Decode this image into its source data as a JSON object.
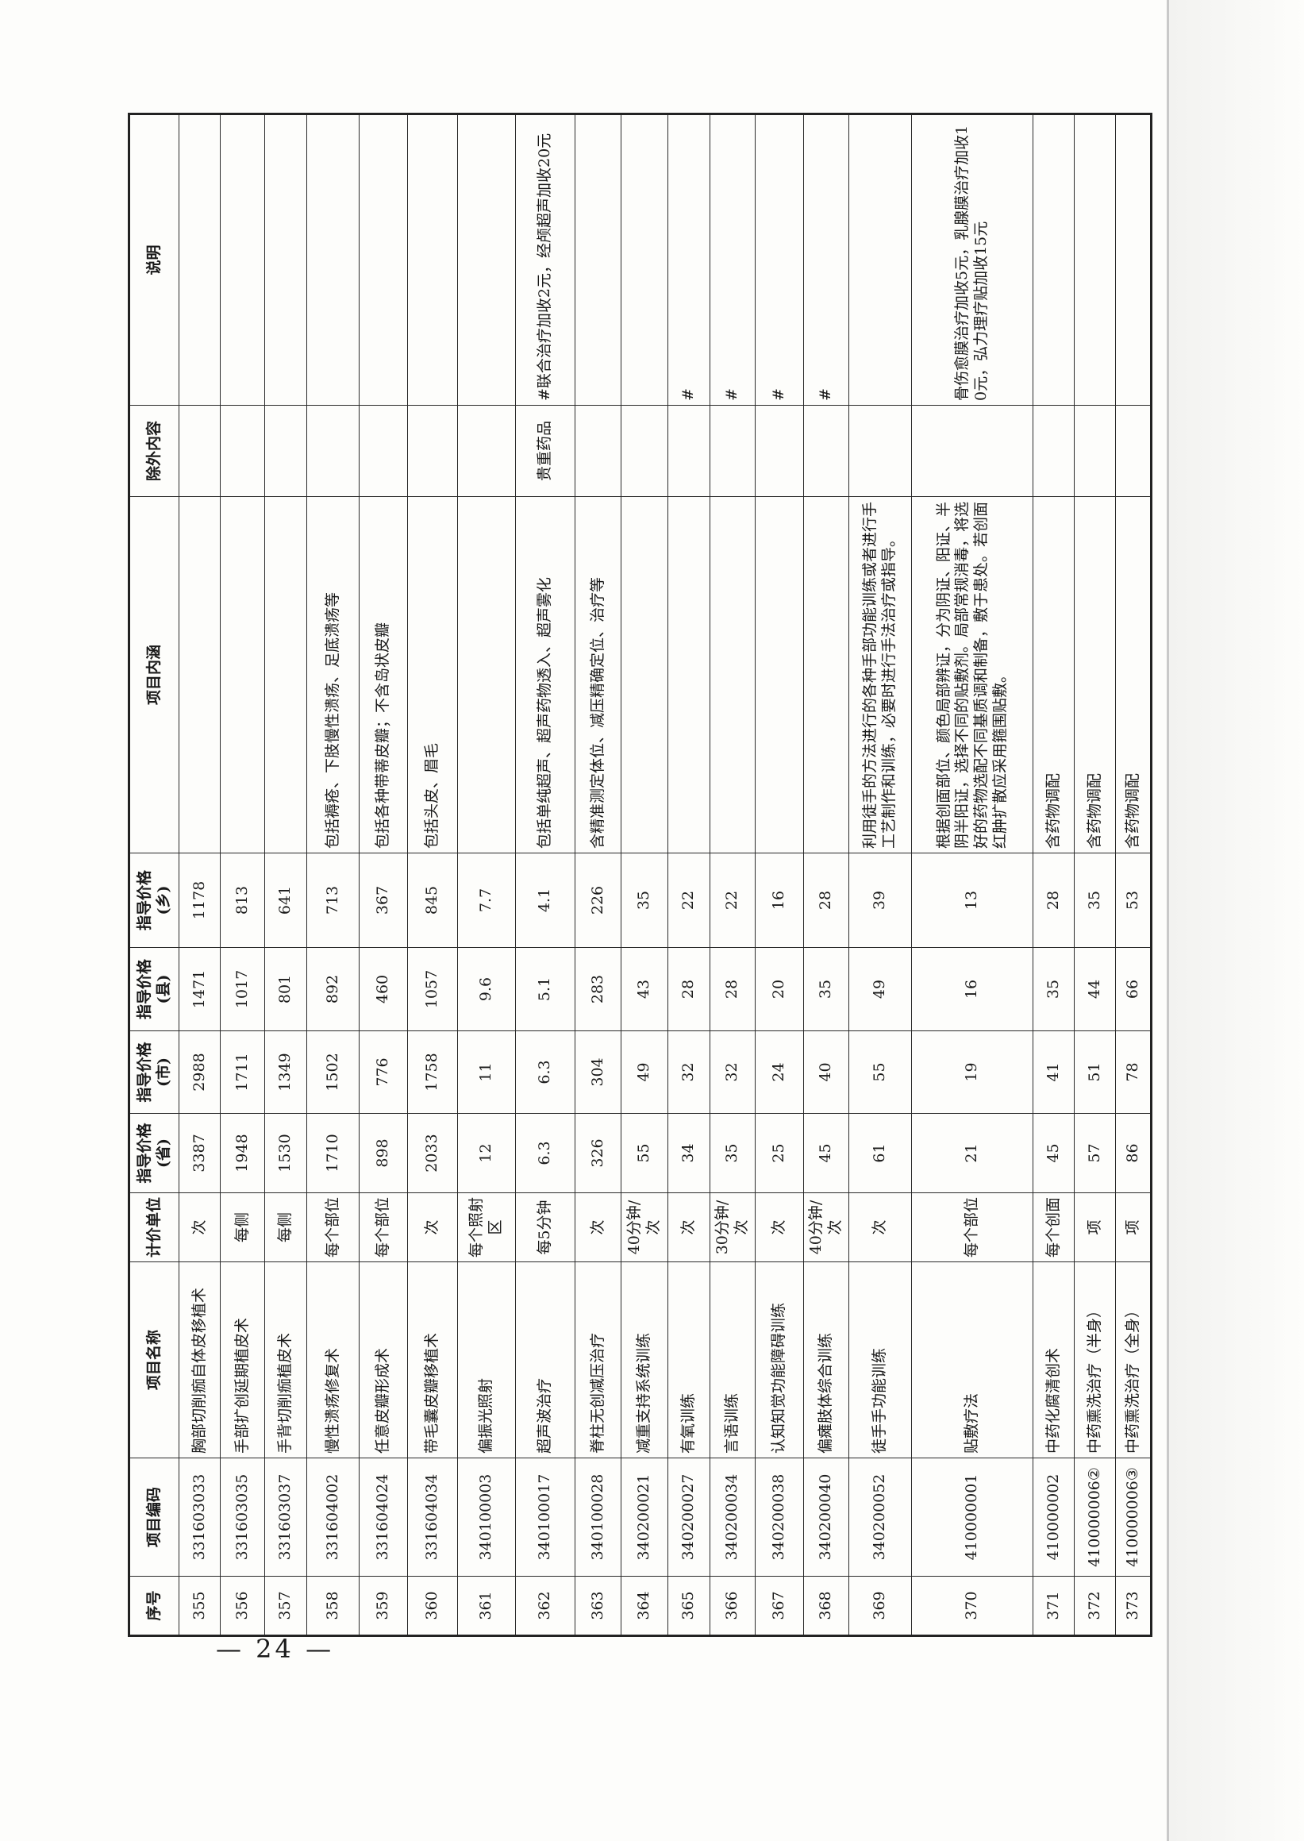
{
  "page_number": "— 24 —",
  "table": {
    "headers": [
      "序号",
      "项目编码",
      "项目名称",
      "计价单位",
      "指导价格(省)",
      "指导价格(市)",
      "指导价格(县)",
      "指导价格(乡)",
      "项目内涵",
      "除外内容",
      "说明"
    ],
    "rows": [
      [
        "355",
        "331603033",
        "胸部切削痂自体皮移植术",
        "次",
        "3387",
        "2988",
        "1471",
        "1178",
        "",
        "",
        ""
      ],
      [
        "356",
        "331603035",
        "手部扩创延期植皮术",
        "每侧",
        "1948",
        "1711",
        "1017",
        "813",
        "",
        "",
        ""
      ],
      [
        "357",
        "331603037",
        "手背切削痂植皮术",
        "每侧",
        "1530",
        "1349",
        "801",
        "641",
        "",
        "",
        ""
      ],
      [
        "358",
        "331604002",
        "慢性溃疡修复术",
        "每个部位",
        "1710",
        "1502",
        "892",
        "713",
        "包括褥疮、下肢慢性溃疡、足底溃疡等",
        "",
        ""
      ],
      [
        "359",
        "331604024",
        "任意皮瓣形成术",
        "每个部位",
        "898",
        "776",
        "460",
        "367",
        "包括各种带蒂皮瓣；不含岛状皮瓣",
        "",
        ""
      ],
      [
        "360",
        "331604034",
        "带毛囊皮瓣移植术",
        "次",
        "2033",
        "1758",
        "1057",
        "845",
        "包括头皮、眉毛",
        "",
        ""
      ],
      [
        "361",
        "340100003",
        "偏振光照射",
        "每个照射区",
        "12",
        "11",
        "9.6",
        "7.7",
        "",
        "",
        ""
      ],
      [
        "362",
        "340100017",
        "超声波治疗",
        "每5分钟",
        "6.3",
        "6.3",
        "5.1",
        "4.1",
        "包括单纯超声、超声药物透入、超声雾化",
        "贵重药品",
        "#联合治疗加收2元，经颅超声加收20元"
      ],
      [
        "363",
        "340100028",
        "脊柱无创减压治疗",
        "次",
        "326",
        "304",
        "283",
        "226",
        "含精准测定体位、减压精确定位、治疗等",
        "",
        ""
      ],
      [
        "364",
        "340200021",
        "减重支持系统训练",
        "40分钟/次",
        "55",
        "49",
        "43",
        "35",
        "",
        "",
        ""
      ],
      [
        "365",
        "340200027",
        "有氧训练",
        "次",
        "34",
        "32",
        "28",
        "22",
        "",
        "",
        "#"
      ],
      [
        "366",
        "340200034",
        "言语训练",
        "30分钟/次",
        "35",
        "32",
        "28",
        "22",
        "",
        "",
        "#"
      ],
      [
        "367",
        "340200038",
        "认知知觉功能障碍训练",
        "次",
        "25",
        "24",
        "20",
        "16",
        "",
        "",
        "#"
      ],
      [
        "368",
        "340200040",
        "偏瘫肢体综合训练",
        "40分钟/次",
        "45",
        "40",
        "35",
        "28",
        "",
        "",
        "#"
      ],
      [
        "369",
        "340200052",
        "徒手手功能训练",
        "次",
        "61",
        "55",
        "49",
        "39",
        "利用徒手的方法进行的各种手部功能训练或者进行手工艺制作和训练，必要时进行手法治疗或指导。",
        "",
        ""
      ],
      [
        "370",
        "410000001",
        "贴敷疗法",
        "每个部位",
        "21",
        "19",
        "16",
        "13",
        "根据创面部位、颜色局部辨证，分为阴证、阳证、半阴半阳证，选择不同的贴敷剂。局部常规消毒，将选好的药物选配不同基质调和制备，敷于患处。若创面红肿扩散应采用箍围贴敷。",
        "",
        "骨伤愈膜治疗加收5元，乳腺膜治疗加收10元，弘力理疗贴加收15元"
      ],
      [
        "371",
        "410000002",
        "中药化腐清创术",
        "每个创面",
        "45",
        "41",
        "35",
        "28",
        "含药物调配",
        "",
        ""
      ],
      [
        "372",
        "410000006②",
        "中药熏洗治疗（半身）",
        "项",
        "57",
        "51",
        "44",
        "35",
        "含药物调配",
        "",
        ""
      ],
      [
        "373",
        "410000006③",
        "中药熏洗治疗（全身）",
        "项",
        "86",
        "78",
        "66",
        "53",
        "含药物调配",
        "",
        ""
      ]
    ]
  }
}
